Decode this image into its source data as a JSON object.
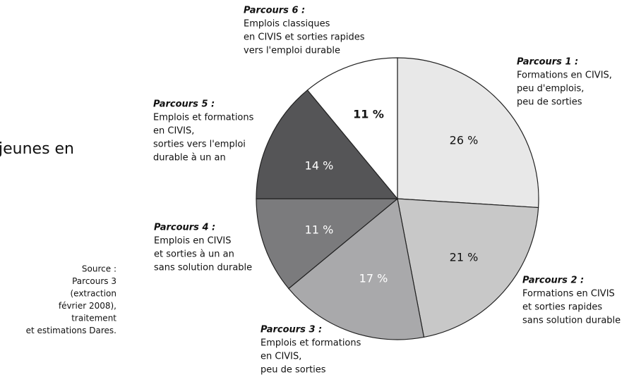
{
  "chart_data": {
    "type": "pie",
    "title": "jeunes en",
    "categories": [
      "Parcours 1 :",
      "Parcours 2 :",
      "Parcours 3 :",
      "Parcours 4 :",
      "Parcours 5 :",
      "Parcours 6 :"
    ],
    "descriptions": [
      [
        "Formations en CIVIS,",
        "peu d'emplois,",
        "peu de sorties"
      ],
      [
        "Formations en CIVIS",
        "et sorties rapides",
        "sans solution durable"
      ],
      [
        "Emplois et formations",
        "en CIVIS,",
        "peu de sorties"
      ],
      [
        "Emplois en CIVIS",
        "et sorties à un an",
        "sans solution durable"
      ],
      [
        "Emplois et formations",
        "en CIVIS,",
        "sorties vers l'emploi",
        "durable à un an"
      ],
      [
        "Emplois classiques",
        "en CIVIS et sorties rapides",
        "vers l'emploi durable"
      ]
    ],
    "values": [
      26,
      21,
      17,
      11,
      14,
      11
    ],
    "value_labels": [
      "26 %",
      "21 %",
      "17 %",
      "11 %",
      "14 %",
      "11 %"
    ],
    "colors": [
      "#e8e8e8",
      "#c8c8c8",
      "#a9a9ab",
      "#7b7b7d",
      "#555557",
      "#ffffff"
    ],
    "source": [
      "Source :",
      "Parcours 3",
      "(extraction",
      "février 2008),",
      "traitement",
      "et estimations Dares."
    ]
  }
}
